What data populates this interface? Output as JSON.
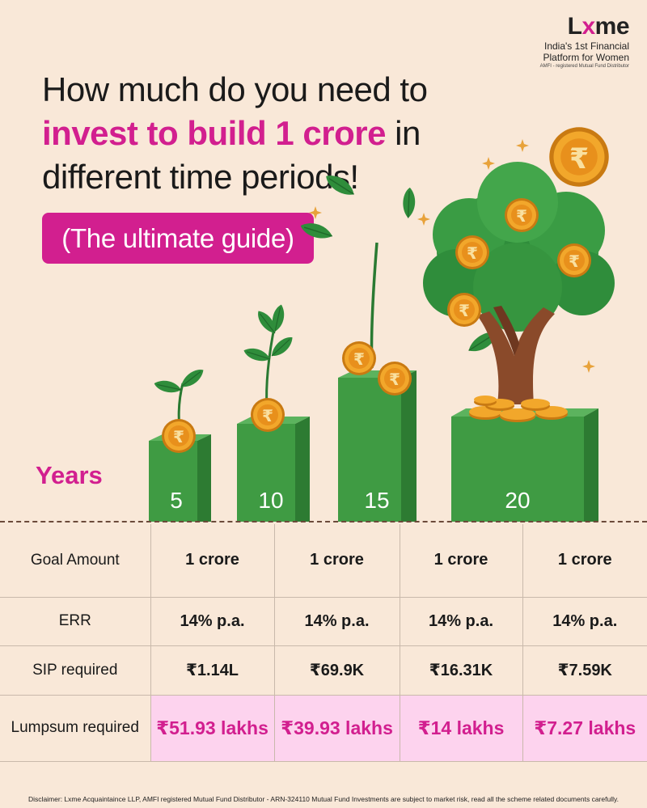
{
  "brand": {
    "logo_prefix": "L",
    "logo_x": "x",
    "logo_suffix": "me",
    "tagline": "India's 1st Financial Platform for Women",
    "sub": "AMFI - registered Mutual Fund Distributor"
  },
  "headline": {
    "line1": "How much do you need to",
    "highlight": "invest to build 1 crore",
    "rest": " in different time periods!"
  },
  "pill_label": "(The ultimate guide)",
  "years_label": "Years",
  "years": [
    "5",
    "10",
    "15",
    "20"
  ],
  "table": {
    "rows": [
      {
        "label": "Goal Amount",
        "values": [
          "1 crore",
          "1 crore",
          "1 crore",
          "1 crore"
        ]
      },
      {
        "label": "ERR",
        "values": [
          "14% p.a.",
          "14% p.a.",
          "14% p.a.",
          "14% p.a."
        ]
      },
      {
        "label": "SIP required",
        "values": [
          "₹1.14L",
          "₹69.9K",
          "₹16.31K",
          "₹7.59K"
        ]
      },
      {
        "label": "Lumpsum required",
        "values": [
          "₹51.93 lakhs",
          "₹39.93 lakhs",
          "₹14 lakhs",
          "₹7.27 lakhs"
        ]
      }
    ]
  },
  "disclaimer": "Disclaimer: Lxme Acquaintaince LLP, AMFI registered Mutual Fund Distributor - ARN-324110 Mutual Fund Investments are subject to market risk, read all the scheme related documents carefully.",
  "colors": {
    "background": "#f9e8d8",
    "accent": "#d21f8f",
    "lumpsum_bg": "#fdd3ee",
    "block_green": "#3e9a42",
    "coin_gold": "#f0a82a"
  },
  "icons": {
    "coin": "rupee-coin-icon",
    "sparkle": "sparkle-icon",
    "plant": "sprout-icon",
    "tree": "money-tree-icon"
  },
  "coin_symbol": "₹"
}
